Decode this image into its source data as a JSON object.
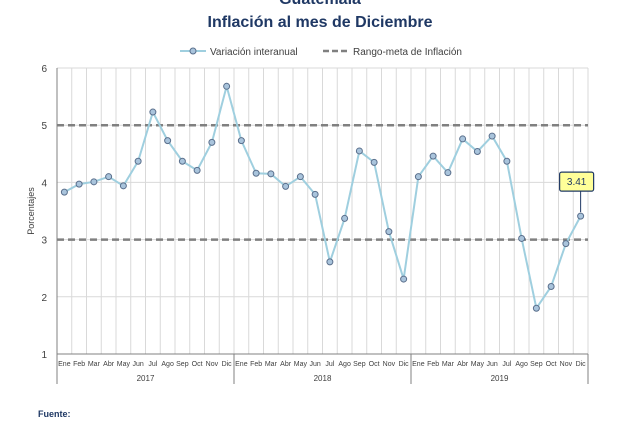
{
  "titles": {
    "line1": "Guatemala",
    "line2": "Inflación al mes de Diciembre"
  },
  "source_label": "Fuente:",
  "chart_data": {
    "type": "line",
    "ylabel": "Porcentajes",
    "ylim": [
      1,
      6
    ],
    "yticks": [
      1,
      2,
      3,
      4,
      5,
      6
    ],
    "grid": true,
    "legend_position": "top-center",
    "months": [
      "Ene",
      "Feb",
      "Mar",
      "Abr",
      "May",
      "Jun",
      "Jul",
      "Ago",
      "Sep",
      "Oct",
      "Nov",
      "Dic"
    ],
    "years": [
      "2017",
      "2018",
      "2019"
    ],
    "series": [
      {
        "name": "Variación interanual",
        "color": "#9fcfdf",
        "marker_color": "#a9c4dc",
        "values": [
          3.83,
          3.97,
          4.01,
          4.1,
          3.94,
          4.37,
          5.23,
          4.73,
          4.37,
          4.21,
          4.7,
          5.68,
          4.73,
          4.16,
          4.15,
          3.93,
          4.1,
          3.79,
          2.61,
          3.37,
          4.55,
          4.35,
          3.14,
          2.31,
          4.1,
          4.46,
          4.17,
          4.76,
          4.54,
          4.81,
          4.37,
          3.02,
          1.8,
          2.18,
          2.93,
          3.41
        ]
      },
      {
        "name": "Rango-meta de Inflación",
        "color": "#808080",
        "dashed": true,
        "values": [
          3,
          5
        ]
      }
    ],
    "annotation": {
      "text": "3.41",
      "index": 35,
      "fill": "#ffff99",
      "border": "#1f3864"
    }
  }
}
